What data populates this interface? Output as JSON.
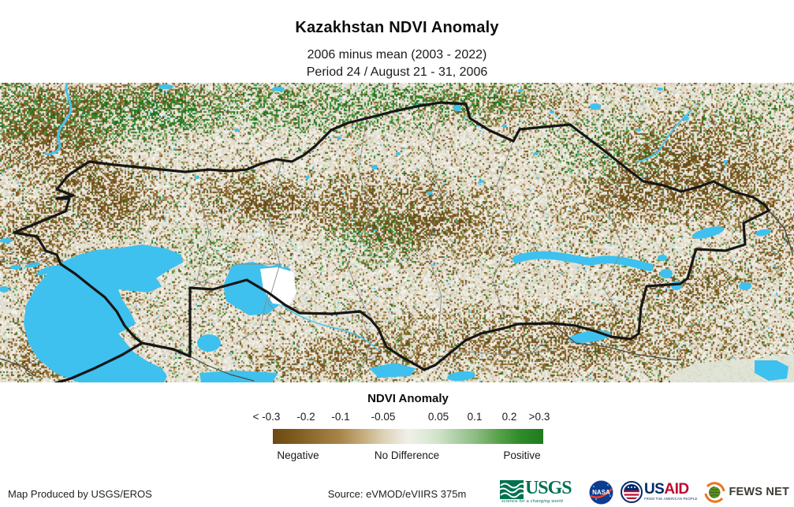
{
  "header": {
    "title": "Kazakhstan NDVI Anomaly",
    "subtitle_line1": "2006 minus mean (2003 - 2022)",
    "subtitle_line2": "Period 24 / August 21 - 31, 2006"
  },
  "legend": {
    "title": "NDVI Anomaly",
    "tick_labels": [
      "< -0.3",
      "-0.2",
      "-0.1",
      "-0.05",
      "0.05",
      "0.1",
      "0.2",
      ">0.3"
    ],
    "category_labels": [
      "Negative",
      "No Difference",
      "Positive"
    ],
    "gradient_stops": [
      "#6b4a12",
      "#7d5a1e",
      "#a98549",
      "#c4ab79",
      "#ddd2b6",
      "#f1efe9",
      "#e0ebd9",
      "#cfe3c8",
      "#8cbc82",
      "#55a047",
      "#2d8a28",
      "#1f7a1f"
    ]
  },
  "map": {
    "water_color": "#3ec1ee",
    "country_border_color": "#161616",
    "admin_line_color": "#8a8a85"
  },
  "footer": {
    "produced_by": "Map Produced by USGS/EROS",
    "source": "Source: eVMOD/eVIIRS 375m",
    "logos": {
      "usgs": {
        "name": "USGS",
        "tagline": "science for a changing world"
      },
      "nasa": {
        "name": "NASA"
      },
      "usaid": {
        "name_part1": "US",
        "name_part2": "AID",
        "tagline": "FROM THE AMERICAN PEOPLE"
      },
      "fewsnet": {
        "name": "FEWS NET"
      }
    }
  }
}
